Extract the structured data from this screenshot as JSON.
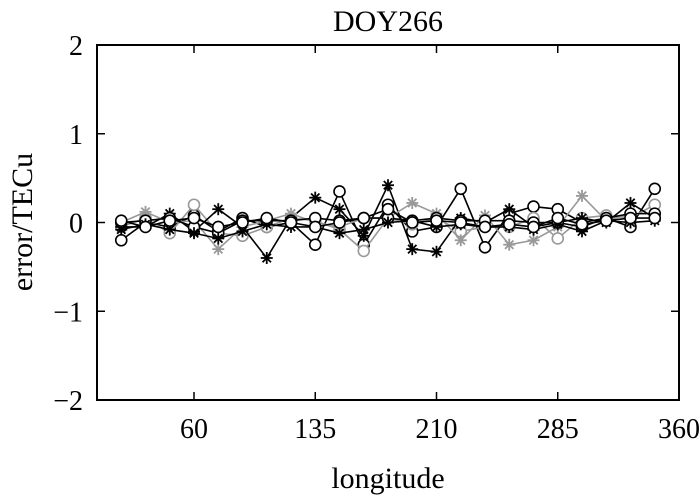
{
  "chart_data": {
    "type": "line",
    "title": "DOY266",
    "xlabel": "longitude",
    "ylabel": "error/TECu",
    "xlim": [
      0,
      360
    ],
    "ylim": [
      -2,
      2
    ],
    "xticks": [
      60,
      135,
      210,
      285,
      360
    ],
    "yticks": [
      -2,
      -1,
      0,
      1,
      2
    ],
    "ytick_labels": [
      "−2",
      "−1",
      "0",
      "1",
      "2"
    ],
    "grid": false,
    "legend": "none",
    "x": [
      15,
      30,
      45,
      60,
      75,
      90,
      105,
      120,
      135,
      150,
      165,
      180,
      195,
      210,
      225,
      240,
      255,
      270,
      285,
      300,
      315,
      330,
      345
    ],
    "series": [
      {
        "marker": "circle",
        "color": "#000000",
        "values": [
          -0.2,
          0.0,
          -0.05,
          0.08,
          -0.1,
          0.05,
          -0.05,
          0.0,
          -0.25,
          0.35,
          -0.25,
          0.2,
          -0.1,
          -0.05,
          0.38,
          -0.28,
          0.1,
          0.18,
          0.15,
          0.0,
          0.05,
          -0.05,
          0.38
        ]
      },
      {
        "marker": "circle",
        "color": "#999999",
        "values": [
          -0.05,
          0.05,
          -0.12,
          0.2,
          -0.12,
          -0.15,
          -0.05,
          0.05,
          0.02,
          -0.08,
          -0.32,
          0.05,
          -0.02,
          0.05,
          -0.1,
          -0.05,
          -0.05,
          0.05,
          -0.18,
          0.05,
          0.08,
          0.05,
          0.2
        ]
      },
      {
        "marker": "asterisk",
        "color": "#000000",
        "values": [
          -0.05,
          -0.05,
          0.1,
          -0.1,
          0.15,
          -0.05,
          -0.4,
          0.05,
          0.28,
          0.15,
          -0.15,
          0.42,
          -0.3,
          -0.33,
          0.05,
          0.0,
          0.15,
          -0.05,
          0.0,
          0.05,
          0.0,
          0.22,
          0.05
        ]
      },
      {
        "marker": "asterisk",
        "color": "#999999",
        "values": [
          0.0,
          0.12,
          0.0,
          0.02,
          -0.3,
          -0.05,
          0.02,
          0.1,
          0.0,
          -0.05,
          0.05,
          0.05,
          0.22,
          0.1,
          -0.2,
          0.08,
          -0.25,
          -0.2,
          -0.05,
          0.3,
          0.02,
          0.1,
          0.1
        ]
      },
      {
        "marker": "circle",
        "color": "#000000",
        "values": [
          0.0,
          0.02,
          0.05,
          -0.05,
          -0.12,
          0.02,
          0.02,
          0.02,
          0.05,
          0.02,
          0.05,
          0.05,
          0.02,
          0.05,
          0.02,
          0.02,
          0.02,
          0.0,
          0.0,
          -0.05,
          0.05,
          0.1,
          0.1
        ]
      },
      {
        "marker": "asterisk",
        "color": "#000000",
        "values": [
          -0.08,
          -0.02,
          -0.08,
          -0.12,
          -0.18,
          -0.1,
          -0.02,
          -0.05,
          -0.05,
          -0.12,
          -0.08,
          0.0,
          0.02,
          -0.05,
          -0.02,
          -0.05,
          -0.05,
          -0.08,
          -0.02,
          -0.1,
          0.02,
          0.0,
          0.02
        ]
      },
      {
        "marker": "circle",
        "color": "#000000",
        "values": [
          0.02,
          -0.05,
          0.02,
          0.05,
          -0.05,
          0.0,
          0.05,
          0.0,
          -0.05,
          0.0,
          0.05,
          0.15,
          0.0,
          0.02,
          0.0,
          -0.05,
          -0.02,
          -0.05,
          0.05,
          -0.02,
          0.02,
          0.05,
          0.05
        ]
      }
    ]
  }
}
